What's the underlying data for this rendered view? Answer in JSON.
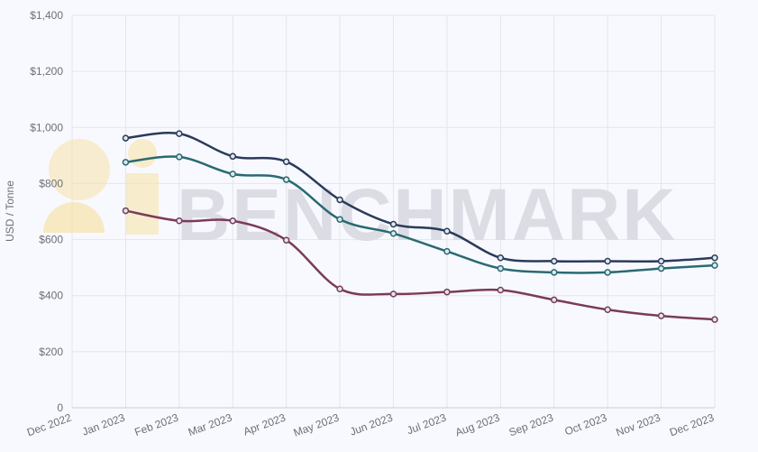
{
  "chart_data": {
    "type": "line",
    "ylabel": "USD / Tonne",
    "ylim": [
      0,
      1400
    ],
    "y_ticks": [
      0,
      200,
      400,
      600,
      800,
      1000,
      1200,
      1400
    ],
    "y_tick_labels": [
      "0",
      "$200",
      "$400",
      "$600",
      "$800",
      "$1,000",
      "$1,200",
      "$1,400"
    ],
    "categories": [
      "Dec 2022",
      "Jan 2023",
      "Feb 2023",
      "Mar 2023",
      "Apr 2023",
      "May 2023",
      "Jun 2023",
      "Jul 2023",
      "Aug 2023",
      "Sep 2023",
      "Oct 2023",
      "Nov 2023",
      "Dec 2023"
    ],
    "grid": true,
    "series": [
      {
        "color": "#2a3b5a",
        "values": [
          null,
          962,
          978,
          897,
          878,
          742,
          655,
          630,
          535,
          523,
          523,
          523,
          535
        ]
      },
      {
        "color": "#2a6a72",
        "values": [
          null,
          876,
          895,
          834,
          814,
          672,
          622,
          558,
          497,
          483,
          483,
          497,
          508
        ]
      },
      {
        "color": "#7a3b5c",
        "values": [
          null,
          703,
          667,
          667,
          598,
          424,
          406,
          413,
          420,
          385,
          350,
          328,
          315
        ]
      }
    ]
  },
  "watermark": {
    "text": "BENCHMARK",
    "logo_color": "#f6e2a8"
  }
}
